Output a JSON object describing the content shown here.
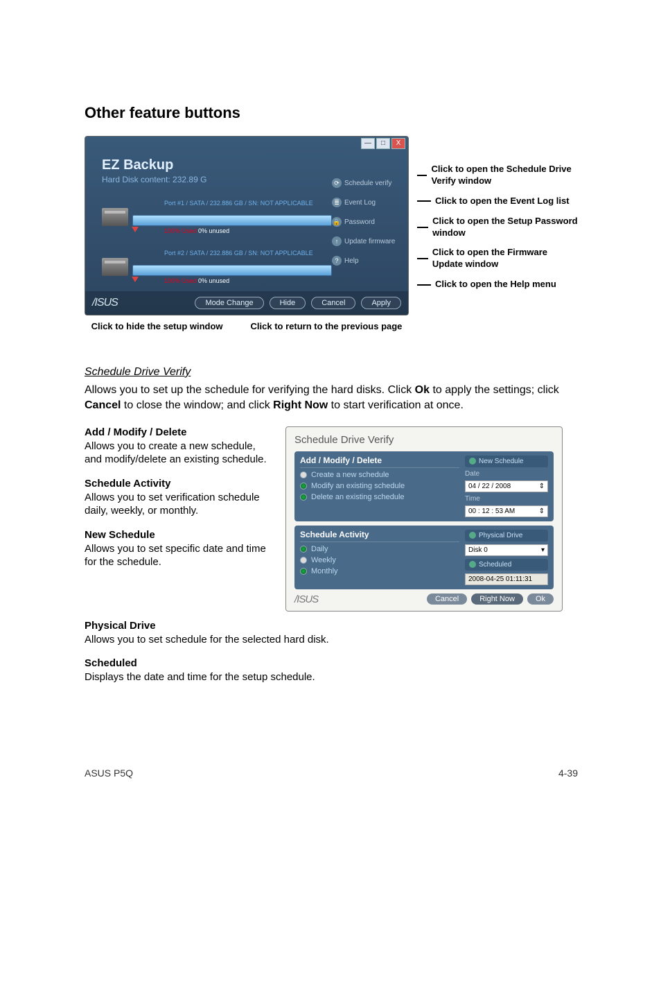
{
  "section_title": "Other feature buttons",
  "ez": {
    "title": "EZ Backup",
    "subtitle": "Hard Disk content: 232.89 G",
    "drives": [
      {
        "info": "Port #1 / SATA / 232.886 GB / SN: NOT APPLICABLE",
        "used": "100% Used",
        "unused": "0% unused"
      },
      {
        "info": "Port #2 / SATA / 232.886 GB / SN: NOT APPLICABLE",
        "used": "100% Used",
        "unused": "0% unused"
      }
    ],
    "side": {
      "schedule": "Schedule verify",
      "eventlog": "Event Log",
      "password": "Password",
      "firmware": "Update firmware",
      "help": "Help"
    },
    "footer": {
      "mode_change": "Mode Change",
      "hide": "Hide",
      "cancel": "Cancel",
      "apply": "Apply"
    },
    "titlebar": {
      "min": "—",
      "max": "□",
      "close": "X"
    }
  },
  "callouts": {
    "schedule": "Click to open the Schedule Drive Verify window",
    "eventlog": "Click to open the Event Log list",
    "password": "Click to open the Setup Password window",
    "firmware": "Click to open the Firmware Update window",
    "help": "Click to open the Help menu",
    "hide": "Click to hide the setup window",
    "cancel": "Click to return to the previous page"
  },
  "sdv": {
    "heading": "Schedule Drive Verify",
    "body": "Allows you to set up the schedule for verifying the hard disks. Click <b>Ok</b> to apply the settings; click <b>Cancel</b> to close the window; and click <b>Right Now</b> to start verification at once.",
    "defs": {
      "amd_t": "Add / Modify / Delete",
      "amd_b": "Allows you to create a new schedule, and modify/delete an existing schedule.",
      "sa_t": "Schedule Activity",
      "sa_b": "Allows you to set verification schedule daily, weekly, or monthly.",
      "ns_t": "New Schedule",
      "ns_b": "Allows you to set specific date and time for the schedule.",
      "pd_t": "Physical Drive",
      "pd_b": "Allows you to set schedule for the selected hard disk.",
      "sc_t": "Scheduled",
      "sc_b": "Displays the date and time for the setup schedule."
    },
    "window": {
      "title": "Schedule Drive Verify",
      "amd_header": "Add / Modify / Delete",
      "amd_o1": "Create a new schedule",
      "amd_o2": "Modify an existing schedule",
      "amd_o3": "Delete an existing schedule",
      "sa_header": "Schedule Activity",
      "sa_o1": "Daily",
      "sa_o2": "Weekly",
      "sa_o3": "Monthly",
      "ns_chip": "New Schedule",
      "date_label": "Date",
      "date_value": "04 / 22 / 2008",
      "time_label": "Time",
      "time_value": "00 : 12 : 53 AM",
      "pd_chip": "Physical Drive",
      "disk_value": "Disk 0",
      "scheduled_chip": "Scheduled",
      "scheduled_value": "2008-04-25    01:11:31",
      "btn_cancel": "Cancel",
      "btn_rightnow": "Right Now",
      "btn_ok": "Ok"
    }
  },
  "footer": {
    "left": "ASUS P5Q",
    "right": "4-39"
  }
}
